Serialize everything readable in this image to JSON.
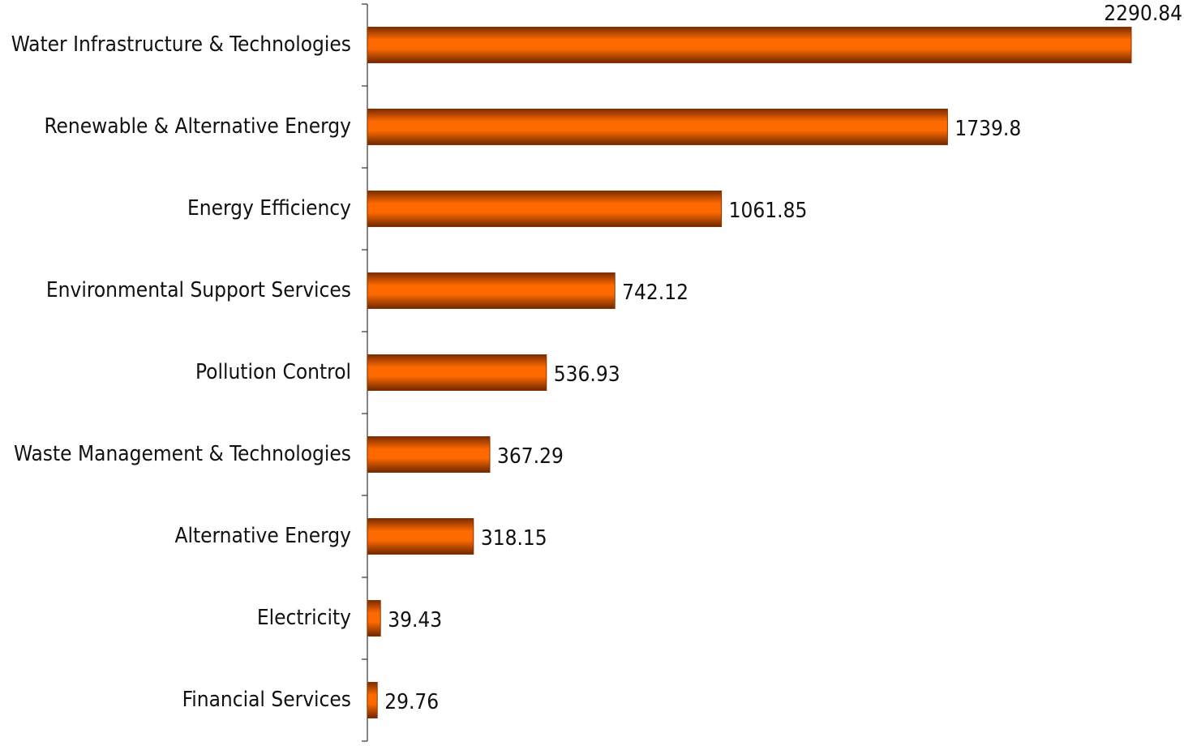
{
  "chart_data": {
    "type": "bar",
    "orientation": "horizontal",
    "categories": [
      "Water Infrastructure & Technologies",
      "Renewable & Alternative Energy",
      "Energy Efficiency",
      "Environmental Support Services",
      "Pollution Control",
      "Waste Management & Technologies",
      "Alternative Energy",
      "Electricity",
      "Financial Services"
    ],
    "values": [
      2290.84,
      1739.8,
      1061.85,
      742.12,
      536.93,
      367.29,
      318.15,
      39.43,
      29.76
    ],
    "value_labels": [
      "2290.84",
      "1739.8",
      "1061.85",
      "742.12",
      "536.93",
      "367.29",
      "318.15",
      "39.43",
      "29.76"
    ],
    "title": "",
    "xlabel": "",
    "ylabel": "",
    "xlim": [
      0,
      2290.84
    ],
    "grid": false,
    "legend": "none",
    "bar_color": "#ff6600",
    "bar_edge_color": "#8a3300"
  }
}
